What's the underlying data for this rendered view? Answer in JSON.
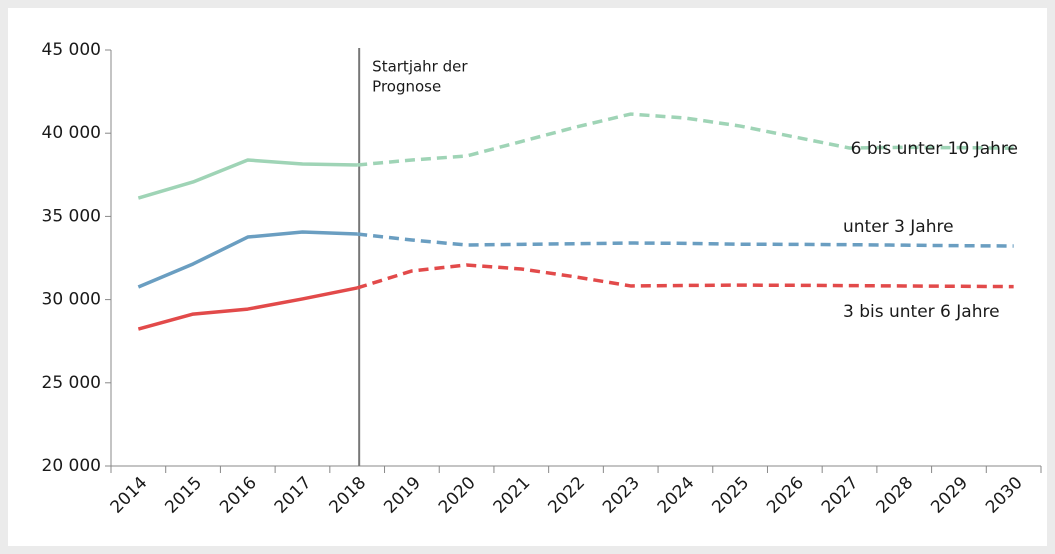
{
  "chart_data": {
    "type": "line",
    "categories": [
      "2014",
      "2015",
      "2016",
      "2017",
      "2018",
      "2019",
      "2020",
      "2021",
      "2022",
      "2023",
      "2024",
      "2025",
      "2026",
      "2027",
      "2028",
      "2029",
      "2030"
    ],
    "forecast_start": "2018",
    "annotation": [
      "Startjahr der",
      "Prognose"
    ],
    "series": [
      {
        "name": "6 bis unter 10 Jahre",
        "color": "#9fd4b6",
        "values": [
          36100,
          37070,
          38390,
          38150,
          38090,
          38390,
          38630,
          39500,
          40370,
          41150,
          40910,
          40430,
          39770,
          39110,
          39150,
          39130,
          39100
        ]
      },
      {
        "name": "unter 3 Jahre",
        "color": "#6a9ec1",
        "values": [
          30760,
          32140,
          33760,
          34060,
          33940,
          33580,
          33280,
          33320,
          33360,
          33400,
          33380,
          33330,
          33320,
          33300,
          33270,
          33240,
          33220
        ]
      },
      {
        "name": "3 bis unter 6 Jahre",
        "color": "#e24a4a",
        "values": [
          28230,
          29130,
          29430,
          30040,
          30700,
          31720,
          32080,
          31840,
          31360,
          30820,
          30850,
          30870,
          30860,
          30840,
          30820,
          30800,
          30780
        ]
      }
    ],
    "ylim": [
      20000,
      45000
    ],
    "yticks": [
      {
        "value": 20000,
        "label": "20 000"
      },
      {
        "value": 25000,
        "label": "25 000"
      },
      {
        "value": 30000,
        "label": "30 000"
      },
      {
        "value": 35000,
        "label": "35 000"
      },
      {
        "value": 40000,
        "label": "40 000"
      },
      {
        "value": 45000,
        "label": "45 000"
      }
    ],
    "grid": false
  }
}
